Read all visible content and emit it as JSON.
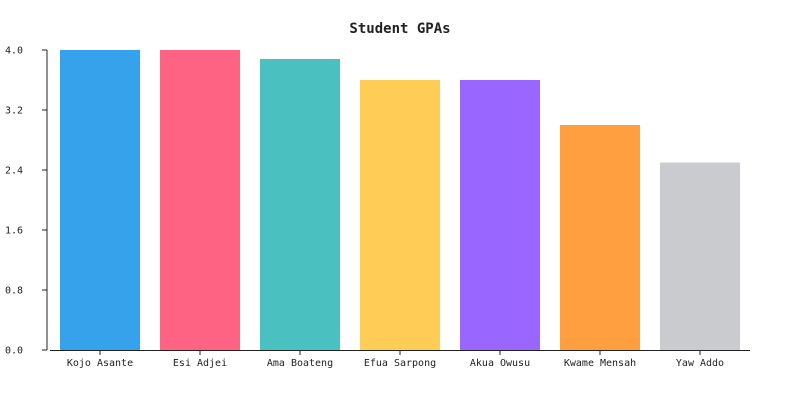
{
  "chart_data": {
    "type": "bar",
    "title": "Student GPAs",
    "xlabel": "",
    "ylabel": "",
    "categories": [
      "Kojo Asante",
      "Esi Adjei",
      "Ama Boateng",
      "Efua Sarpong",
      "Akua Owusu",
      "Kwame Mensah",
      "Yaw Addo"
    ],
    "values": [
      4.0,
      4.0,
      3.88,
      3.6,
      3.6,
      3.0,
      2.5
    ],
    "colors": [
      "#36a2eb",
      "#ff6384",
      "#4bc0c0",
      "#ffcd56",
      "#9966ff",
      "#ff9f40",
      "#c9cbcf"
    ],
    "ylim": [
      0,
      4.0
    ],
    "yticks": [
      "0.0",
      "0.8",
      "1.6",
      "2.4",
      "3.2",
      "4.0"
    ],
    "grid": false,
    "legend": "none"
  }
}
